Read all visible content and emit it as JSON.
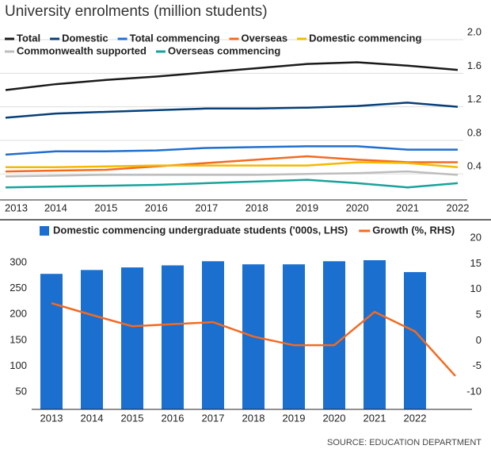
{
  "title": "University enrolments (million students)",
  "source": "SOURCE: EDUCATION DEPARTMENT",
  "chart_data": [
    {
      "type": "line",
      "categories": [
        "2013",
        "2014",
        "2015",
        "2016",
        "2017",
        "2018",
        "2019",
        "2020",
        "2021",
        "2022"
      ],
      "ylim": [
        0.1,
        2.0
      ],
      "yticks": [
        0.4,
        0.8,
        1.2,
        1.6,
        {
          "value": 2,
          "label": "2.0"
        }
      ],
      "grid": true,
      "series": [
        {
          "name": "Total",
          "color": "#1a1a1a",
          "values": [
            1.4,
            1.47,
            1.52,
            1.56,
            1.61,
            1.66,
            1.71,
            1.73,
            1.69,
            1.64
          ]
        },
        {
          "name": "Domestic",
          "color": "#073f78",
          "values": [
            1.07,
            1.12,
            1.14,
            1.16,
            1.18,
            1.18,
            1.19,
            1.21,
            1.25,
            1.2
          ]
        },
        {
          "name": "Total commencing",
          "color": "#1f6fce",
          "values": [
            0.63,
            0.67,
            0.67,
            0.68,
            0.71,
            0.72,
            0.73,
            0.73,
            0.69,
            0.69
          ]
        },
        {
          "name": "Overseas",
          "color": "#f26b21",
          "values": [
            0.43,
            0.44,
            0.45,
            0.49,
            0.53,
            0.57,
            0.61,
            0.57,
            0.54,
            0.54
          ]
        },
        {
          "name": "Domestic commencing",
          "color": "#f5b800",
          "values": [
            0.48,
            0.48,
            0.49,
            0.5,
            0.5,
            0.5,
            0.5,
            0.54,
            0.53,
            0.48
          ]
        },
        {
          "name": "Commonwealth supported",
          "color": "#bdbdbd",
          "values": [
            0.37,
            0.38,
            0.39,
            0.39,
            0.39,
            0.39,
            0.4,
            0.41,
            0.43,
            0.39
          ]
        },
        {
          "name": "Overseas commencing",
          "color": "#17a39a",
          "values": [
            0.24,
            0.25,
            0.26,
            0.27,
            0.29,
            0.31,
            0.33,
            0.29,
            0.24,
            0.29
          ]
        }
      ]
    },
    {
      "type": "bar_line",
      "categories": [
        "2013",
        "2014",
        "2015",
        "2016",
        "2017",
        "2018",
        "2019",
        "2020",
        "2021",
        "2022",
        null
      ],
      "ylim": [
        16,
        348
      ],
      "yticks": [
        50,
        100,
        150,
        200,
        250,
        300
      ],
      "y2lim": [
        -13.4,
        20
      ],
      "y2ticks": [
        -10,
        -5,
        0,
        5,
        10,
        15,
        20
      ],
      "series": [
        {
          "name": "Domestic commencing undergraduate students ('000s, LHS)",
          "color": "#1a6fcf",
          "values": [
            278.5,
            286,
            291,
            295,
            303,
            297,
            297,
            303,
            305,
            282,
            null
          ]
        },
        {
          "name": "Growth (%, RHS)",
          "color": "#f26b21",
          "axis": "y2",
          "values": [
            7.3,
            5.0,
            2.8,
            3.2,
            3.6,
            0.8,
            -0.9,
            -0.9,
            5.6,
            1.8,
            -6.9
          ]
        }
      ]
    }
  ]
}
